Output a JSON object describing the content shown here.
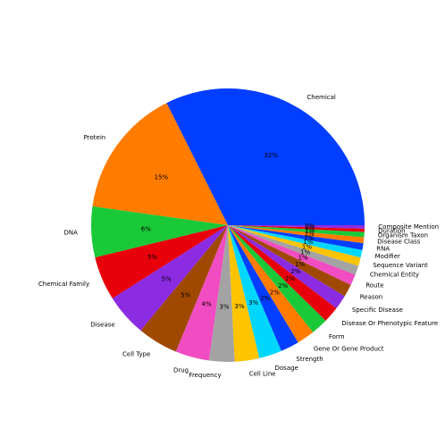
{
  "chart_data": {
    "type": "pie",
    "categories": [
      "Chemical",
      "Protein",
      "DNA",
      "Chemical Family",
      "Disease",
      "Cell Type",
      "Drug",
      "Frequency",
      "Cell Line",
      "Dosage",
      "Strength",
      "Gene Or Gene Product",
      "Form",
      "Disease Or Phenotypic Feature",
      "Specific Disease",
      "Reason",
      "Route",
      "Chemical Entity",
      "Sequence Variant",
      "Modifier",
      "RNA",
      "Disease Class",
      "Organism Taxon",
      "Duration",
      "Composite Mention"
    ],
    "values": [
      32.4,
      15.4,
      6.0,
      5.2,
      5.0,
      4.8,
      4.0,
      3.0,
      2.9,
      2.7,
      2.2,
      2.1,
      2.0,
      1.9,
      1.7,
      1.5,
      1.3,
      1.1,
      1.0,
      0.9,
      0.8,
      0.7,
      0.6,
      0.4,
      0.4
    ],
    "value_labels": [
      "32%",
      "15%",
      "6%",
      "5%",
      "5%",
      "5%",
      "4%",
      "3%",
      "3%",
      "3%",
      "2%",
      "2%",
      "2%",
      "2%",
      "2%",
      "1%",
      "1%",
      "1%",
      "1%",
      "1%",
      "1%",
      "1%",
      "1%",
      "0%",
      "0%"
    ],
    "colors": [
      "#023eff",
      "#ff7c00",
      "#1ac938",
      "#e8000b",
      "#8b2be2",
      "#9f4800",
      "#f14cc1",
      "#a3a3a3",
      "#ffc400",
      "#00d7ff"
    ]
  }
}
